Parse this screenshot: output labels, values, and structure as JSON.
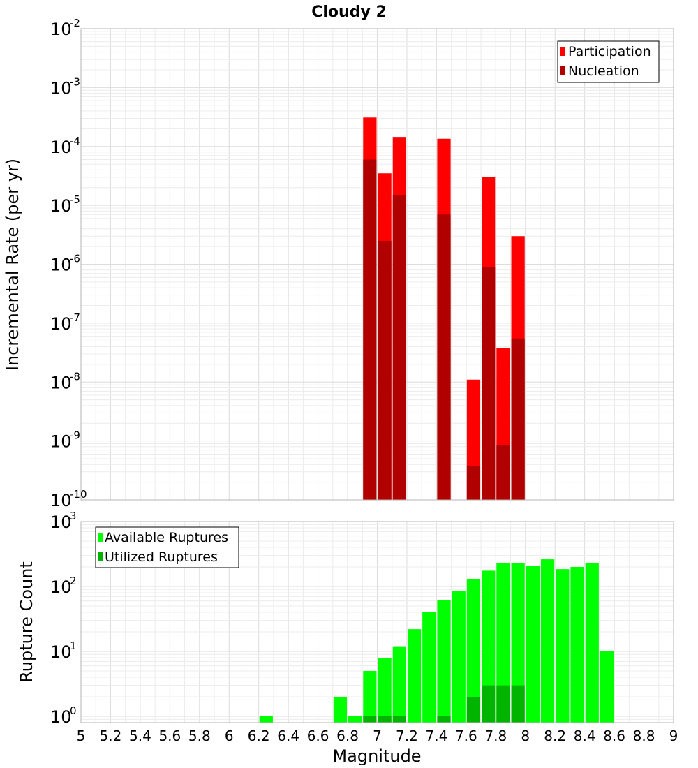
{
  "title": "Cloudy 2",
  "colors": {
    "participation": "#ff0000",
    "nucleation": "#b00000",
    "available": "#00ff00",
    "utilized": "#00b400",
    "grid_minor": "#ececec",
    "grid_major": "#dcdcdc",
    "frame": "#b4b4b4"
  },
  "chart_data": [
    {
      "type": "bar",
      "scale": "log",
      "ylabel": "Incremental Rate (per yr)",
      "xlabel": "",
      "xlim": [
        5,
        9
      ],
      "ylim": [
        1e-10,
        0.01
      ],
      "legend_position": "top-right",
      "y_ticks": [
        {
          "base": "10",
          "exp": "-2"
        },
        {
          "base": "10",
          "exp": "-3"
        },
        {
          "base": "10",
          "exp": "-4"
        },
        {
          "base": "10",
          "exp": "-5"
        },
        {
          "base": "10",
          "exp": "-6"
        },
        {
          "base": "10",
          "exp": "-7"
        },
        {
          "base": "10",
          "exp": "-8"
        },
        {
          "base": "10",
          "exp": "-9"
        },
        {
          "base": "10",
          "exp": "-10"
        }
      ],
      "x": [
        6.95,
        7.05,
        7.15,
        7.45,
        7.65,
        7.75,
        7.85,
        7.95
      ],
      "series": [
        {
          "name": "Participation",
          "values": [
            0.00031,
            3.5e-05,
            0.000145,
            0.000135,
            1.1e-08,
            3e-05,
            3.8e-08,
            3e-06
          ]
        },
        {
          "name": "Nucleation",
          "values": [
            6e-05,
            2.5e-06,
            1.5e-05,
            7e-06,
            3.8e-10,
            9e-07,
            8.5e-10,
            5.5e-08
          ]
        }
      ]
    },
    {
      "type": "bar",
      "scale": "log",
      "ylabel": "Rupture Count",
      "xlabel": "Magnitude",
      "xlim": [
        5,
        9
      ],
      "ylim": [
        0.8,
        1000
      ],
      "legend_position": "top-left",
      "x_ticks": [
        "5",
        "5.2",
        "5.4",
        "5.6",
        "5.8",
        "6",
        "6.2",
        "6.4",
        "6.6",
        "6.8",
        "7",
        "7.2",
        "7.4",
        "7.6",
        "7.8",
        "8",
        "8.2",
        "8.4",
        "8.6",
        "8.8",
        "9"
      ],
      "y_ticks": [
        {
          "base": "10",
          "exp": "3"
        },
        {
          "base": "10",
          "exp": "2"
        },
        {
          "base": "10",
          "exp": "1"
        },
        {
          "base": "10",
          "exp": "0"
        }
      ],
      "x": [
        6.25,
        6.75,
        6.85,
        6.95,
        7.05,
        7.15,
        7.25,
        7.35,
        7.45,
        7.55,
        7.65,
        7.75,
        7.85,
        7.95,
        8.05,
        8.15,
        8.25,
        8.35,
        8.45,
        8.55
      ],
      "series": [
        {
          "name": "Available Ruptures",
          "values": [
            1,
            2,
            1,
            5,
            8,
            12,
            22,
            40,
            62,
            85,
            130,
            175,
            230,
            232,
            210,
            262,
            185,
            200,
            230,
            10
          ]
        },
        {
          "name": "Utilized Ruptures",
          "values": [
            0,
            0,
            0,
            1,
            1,
            1,
            0,
            0,
            1,
            0,
            2,
            3,
            3,
            3,
            0,
            0,
            0,
            0,
            0,
            0
          ]
        }
      ]
    }
  ]
}
